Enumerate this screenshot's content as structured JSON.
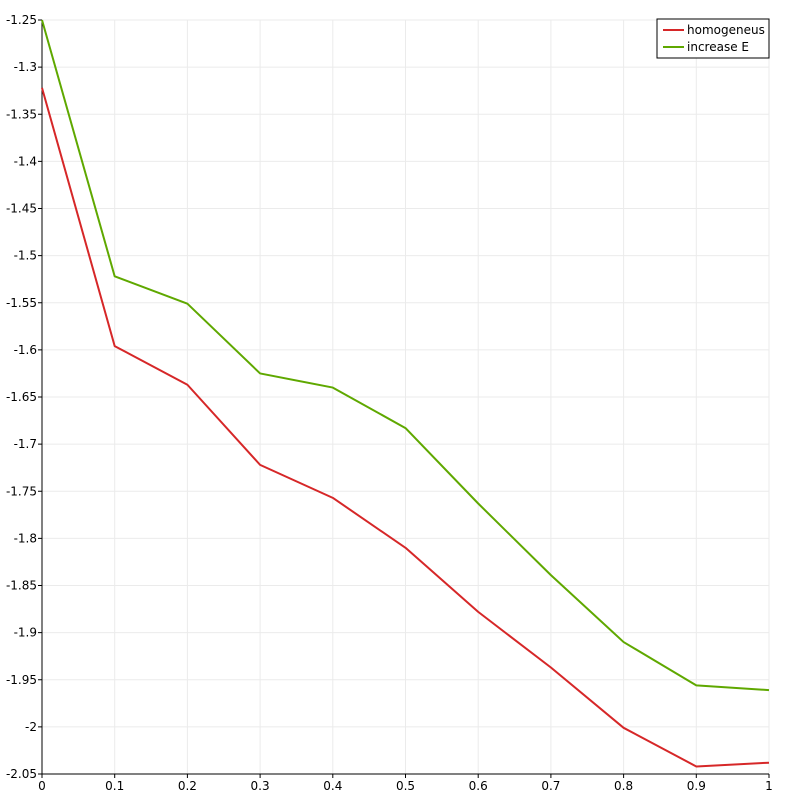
{
  "chart_data": {
    "type": "line",
    "title": "",
    "xlabel": "",
    "ylabel": "",
    "xlim": [
      0,
      1
    ],
    "ylim": [
      -2.05,
      -1.25
    ],
    "x_ticks": [
      0,
      0.1,
      0.2,
      0.3,
      0.4,
      0.5,
      0.6,
      0.7,
      0.8,
      0.9,
      1
    ],
    "x_tick_labels": [
      "0",
      "0.1",
      "0.2",
      "0.3",
      "0.4",
      "0.5",
      "0.6",
      "0.7",
      "0.8",
      "0.9",
      "1"
    ],
    "y_ticks": [
      -1.25,
      -1.3,
      -1.35,
      -1.4,
      -1.45,
      -1.5,
      -1.55,
      -1.6,
      -1.65,
      -1.7,
      -1.75,
      -1.8,
      -1.85,
      -1.9,
      -1.95,
      -2,
      -2.05
    ],
    "y_tick_labels": [
      "-1.25",
      "-1.3",
      "-1.35",
      "-1.4",
      "-1.45",
      "-1.5",
      "-1.55",
      "-1.6",
      "-1.65",
      "-1.7",
      "-1.75",
      "-1.8",
      "-1.85",
      "-1.9",
      "-1.95",
      "-2",
      "-2.05"
    ],
    "grid": true,
    "legend_position": "top-right",
    "x": [
      0,
      0.1,
      0.2,
      0.3,
      0.4,
      0.5,
      0.6,
      0.7,
      0.8,
      0.9,
      1
    ],
    "series": [
      {
        "name": "homogeneus",
        "color": "#d62728",
        "values": [
          -1.322,
          -1.596,
          -1.637,
          -1.722,
          -1.757,
          -1.81,
          -1.878,
          -1.937,
          -2.001,
          -2.042,
          -2.038
        ]
      },
      {
        "name": "increase E",
        "color": "#5fa800",
        "values": [
          -1.25,
          -1.522,
          -1.551,
          -1.625,
          -1.64,
          -1.683,
          -1.763,
          -1.839,
          -1.91,
          -1.956,
          -1.961
        ]
      }
    ]
  }
}
